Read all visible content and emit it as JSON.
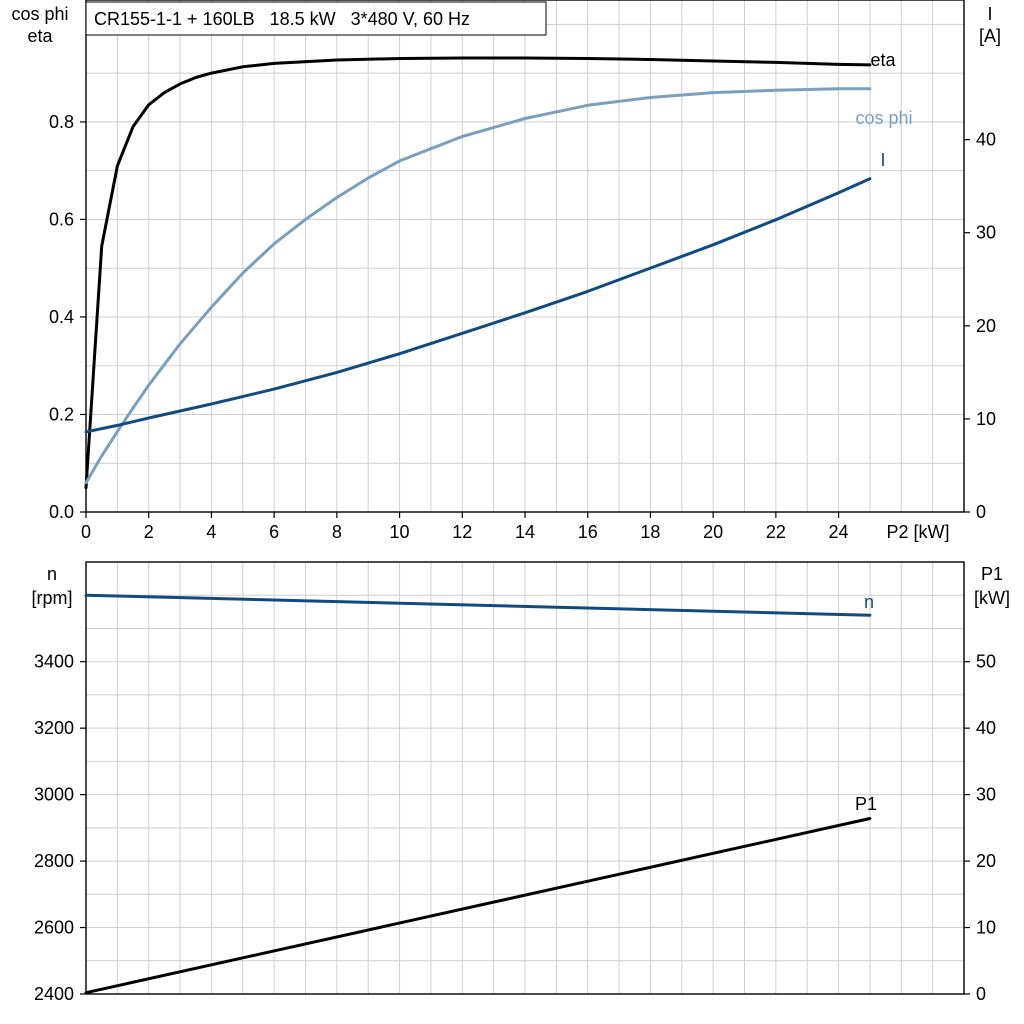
{
  "header": {
    "title": "CR155-1-1 + 160LB   18.5 kW   3*480 V, 60 Hz"
  },
  "colors": {
    "eta": "#000000",
    "cosphi": "#7a9fbf",
    "current": "#0f4a80",
    "speed": "#0f4a80",
    "p1": "#000000",
    "grid": "#cfcfcf"
  },
  "chart_data": [
    {
      "type": "line",
      "panel": "upper",
      "xlabel": "P2 [kW]",
      "ylabel_left": [
        "cos phi",
        "eta"
      ],
      "ylabel_right": [
        "I",
        "[A]"
      ],
      "xlim": [
        0,
        28
      ],
      "ylim_left": [
        0,
        1.05
      ],
      "ylim_right": [
        0,
        55
      ],
      "x_ticks": [
        "0",
        "2",
        "4",
        "6",
        "8",
        "10",
        "12",
        "14",
        "16",
        "18",
        "20",
        "22",
        "24"
      ],
      "y_left_ticks": [
        "0.0",
        "0.2",
        "0.4",
        "0.6",
        "0.8"
      ],
      "y_right_ticks": [
        "0",
        "10",
        "20",
        "30",
        "40"
      ],
      "grid": true,
      "series": [
        {
          "name": "eta",
          "axis": "left",
          "color": "#000000",
          "x": [
            0,
            0.5,
            1,
            1.5,
            2,
            2.5,
            3,
            3.5,
            4,
            5,
            6,
            8,
            10,
            12,
            14,
            16,
            18,
            20,
            22,
            24,
            25
          ],
          "y": [
            0.05,
            0.545,
            0.71,
            0.79,
            0.835,
            0.86,
            0.878,
            0.891,
            0.9,
            0.913,
            0.92,
            0.927,
            0.93,
            0.931,
            0.931,
            0.93,
            0.928,
            0.925,
            0.922,
            0.918,
            0.917
          ]
        },
        {
          "name": "cos phi",
          "axis": "left",
          "color": "#7a9fbf",
          "x": [
            0,
            0.5,
            1,
            1.5,
            2,
            3,
            4,
            5,
            6,
            7,
            8,
            9,
            10,
            11,
            12,
            14,
            16,
            18,
            20,
            22,
            24,
            25
          ],
          "y": [
            0.06,
            0.115,
            0.165,
            0.213,
            0.26,
            0.345,
            0.42,
            0.49,
            0.55,
            0.6,
            0.645,
            0.685,
            0.72,
            0.745,
            0.77,
            0.807,
            0.834,
            0.85,
            0.86,
            0.865,
            0.868,
            0.868
          ]
        },
        {
          "name": "I",
          "axis": "right",
          "color": "#0f4a80",
          "x": [
            0,
            1,
            2,
            4,
            6,
            8,
            10,
            12,
            14,
            16,
            18,
            20,
            22,
            24,
            25
          ],
          "y": [
            8.6,
            9.3,
            10.1,
            11.6,
            13.2,
            15,
            17,
            19.2,
            21.4,
            23.7,
            26.2,
            28.7,
            31.4,
            34.3,
            35.8
          ]
        }
      ],
      "annotations": [
        "eta",
        "cos phi",
        "I"
      ]
    },
    {
      "type": "line",
      "panel": "lower",
      "ylabel_left": [
        "n",
        "[rpm]"
      ],
      "ylabel_right": [
        "P1",
        "[kW]"
      ],
      "xlim": [
        0,
        28
      ],
      "ylim_left": [
        2400,
        3700
      ],
      "ylim_right": [
        0,
        65
      ],
      "y_left_ticks": [
        "2400",
        "2600",
        "2800",
        "3000",
        "3200",
        "3400"
      ],
      "y_right_ticks": [
        "0",
        "10",
        "20",
        "30",
        "40",
        "50"
      ],
      "grid": true,
      "series": [
        {
          "name": "n",
          "axis": "left",
          "color": "#0f4a80",
          "x": [
            0,
            25
          ],
          "y": [
            3600,
            3540
          ]
        },
        {
          "name": "P1",
          "axis": "right",
          "color": "#000000",
          "x": [
            0,
            25
          ],
          "y": [
            0.2,
            26.4
          ]
        }
      ],
      "annotations": [
        "n",
        "P1"
      ]
    }
  ]
}
